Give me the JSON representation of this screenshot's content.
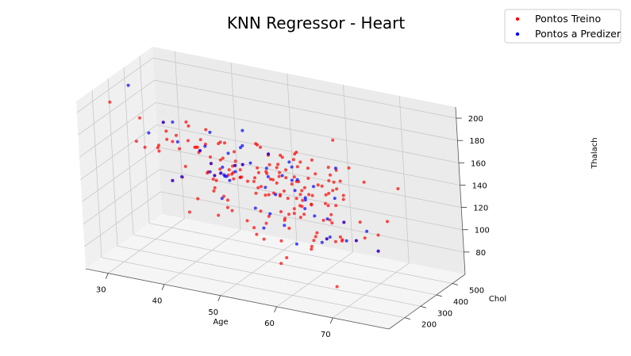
{
  "chart_data": {
    "type": "scatter",
    "projection": "3d",
    "title": "KNN Regressor - Heart",
    "xlabel": "Age",
    "ylabel": "Chol",
    "zlabel": "Thalach",
    "xlim": [
      26,
      80
    ],
    "ylim": [
      100,
      580
    ],
    "zlim": [
      60,
      210
    ],
    "xticks": [
      30,
      40,
      50,
      60,
      70
    ],
    "yticks": [
      200,
      300,
      400,
      500
    ],
    "zticks": [
      80,
      100,
      120,
      140,
      160,
      180,
      200
    ],
    "grid": true,
    "legend": {
      "position": "top-right"
    },
    "colors": {
      "train": "#ff0000",
      "predict": "#0000ff"
    },
    "series": [
      {
        "name": "Pontos Treino",
        "points": [
          [
            29,
            202,
            202
          ],
          [
            34,
            182,
            174
          ],
          [
            35,
            198,
            168
          ],
          [
            37,
            250,
            187
          ],
          [
            38,
            175,
            173
          ],
          [
            39,
            219,
            140
          ],
          [
            40,
            199,
            178
          ],
          [
            41,
            204,
            172
          ],
          [
            41,
            235,
            153
          ],
          [
            42,
            265,
            122
          ],
          [
            43,
            247,
            171
          ],
          [
            44,
            235,
            180
          ],
          [
            44,
            263,
            173
          ],
          [
            45,
            308,
            170
          ],
          [
            46,
            231,
            147
          ],
          [
            47,
            275,
            118
          ],
          [
            48,
            245,
            180
          ],
          [
            49,
            266,
            171
          ],
          [
            50,
            233,
            163
          ],
          [
            51,
            227,
            154
          ],
          [
            52,
            212,
            168
          ],
          [
            52,
            325,
            172
          ],
          [
            53,
            203,
            155
          ],
          [
            54,
            239,
            160
          ],
          [
            54,
            286,
            116
          ],
          [
            55,
            250,
            161
          ],
          [
            56,
            236,
            178
          ],
          [
            56,
            294,
            153
          ],
          [
            57,
            354,
            163
          ],
          [
            57,
            192,
            148
          ],
          [
            58,
            230,
            165
          ],
          [
            58,
            319,
            152
          ],
          [
            59,
            234,
            161
          ],
          [
            59,
            176,
            90
          ],
          [
            60,
            282,
            142
          ],
          [
            60,
            293,
            170
          ],
          [
            61,
            207,
            138
          ],
          [
            61,
            330,
            169
          ],
          [
            62,
            263,
            97
          ],
          [
            62,
            268,
            160
          ],
          [
            63,
            233,
            150
          ],
          [
            63,
            269,
            112
          ],
          [
            64,
            211,
            144
          ],
          [
            64,
            335,
            158
          ],
          [
            65,
            248,
            158
          ],
          [
            66,
            278,
            152
          ],
          [
            67,
            229,
            129
          ],
          [
            67,
            286,
            108
          ],
          [
            68,
            274,
            150
          ],
          [
            69,
            234,
            131
          ],
          [
            70,
            322,
            109
          ],
          [
            71,
            265,
            130
          ],
          [
            74,
            269,
            121
          ],
          [
            77,
            304,
            162
          ],
          [
            58,
            564,
            160
          ],
          [
            67,
            564,
            96
          ],
          [
            65,
            417,
            157
          ],
          [
            63,
            407,
            154
          ],
          [
            62,
            394,
            157
          ],
          [
            56,
            409,
            150
          ],
          [
            45,
            309,
            147
          ],
          [
            48,
            355,
            99
          ],
          [
            52,
            307,
            176
          ],
          [
            53,
            306,
            132
          ],
          [
            54,
            304,
            170
          ],
          [
            55,
            354,
            163
          ],
          [
            57,
            303,
            159
          ],
          [
            58,
            340,
            172
          ],
          [
            59,
            326,
            140
          ],
          [
            60,
            258,
            141
          ],
          [
            61,
            243,
            137
          ],
          [
            62,
            244,
            154
          ],
          [
            63,
            254,
            147
          ],
          [
            64,
            325,
            154
          ],
          [
            65,
            360,
            151
          ],
          [
            66,
            302,
            151
          ],
          [
            42,
            226,
            178
          ],
          [
            43,
            341,
            136
          ],
          [
            44,
            290,
            153
          ],
          [
            46,
            249,
            144
          ],
          [
            47,
            204,
            143
          ],
          [
            48,
            256,
            150
          ],
          [
            49,
            188,
            139
          ],
          [
            50,
            219,
            158
          ],
          [
            51,
            308,
            142
          ],
          [
            52,
            298,
            178
          ],
          [
            53,
            282,
            95
          ],
          [
            54,
            206,
            108
          ],
          [
            55,
            205,
            130
          ],
          [
            56,
            283,
            162
          ],
          [
            57,
            260,
            140
          ],
          [
            58,
            270,
            111
          ],
          [
            59,
            273,
            125
          ],
          [
            60,
            206,
            132
          ],
          [
            39,
            199,
            179
          ],
          [
            41,
            306,
            163
          ],
          [
            43,
            303,
            181
          ],
          [
            44,
            220,
            170
          ],
          [
            45,
            264,
            132
          ],
          [
            46,
            311,
            120
          ],
          [
            47,
            253,
            179
          ],
          [
            48,
            229,
            168
          ],
          [
            49,
            149,
            126
          ],
          [
            51,
            177,
            162
          ],
          [
            52,
            201,
            158
          ],
          [
            53,
            264,
            143
          ],
          [
            54,
            232,
            165
          ],
          [
            55,
            327,
            117
          ],
          [
            56,
            221,
            163
          ],
          [
            57,
            261,
            141
          ],
          [
            58,
            224,
            173
          ],
          [
            59,
            212,
            125
          ],
          [
            60,
            185,
            155
          ],
          [
            61,
            260,
            140
          ],
          [
            62,
            209,
            163
          ],
          [
            63,
            187,
            144
          ],
          [
            64,
            313,
            133
          ],
          [
            65,
            269,
            148
          ],
          [
            66,
            212,
            132
          ],
          [
            67,
            237,
            71
          ],
          [
            35,
            282,
            156
          ],
          [
            38,
            231,
            182
          ],
          [
            40,
            223,
            181
          ],
          [
            42,
            180,
            150
          ],
          [
            44,
            197,
            177
          ],
          [
            46,
            197,
            156
          ],
          [
            48,
            214,
            168
          ],
          [
            50,
            196,
            163
          ],
          [
            52,
            196,
            165
          ],
          [
            54,
            214,
            158
          ],
          [
            56,
            256,
            142
          ],
          [
            58,
            218,
            105
          ],
          [
            60,
            178,
            96
          ],
          [
            62,
            267,
            99
          ],
          [
            64,
            226,
            114
          ],
          [
            66,
            226,
            114
          ],
          [
            68,
            211,
            115
          ],
          [
            70,
            269,
            112
          ],
          [
            43,
            177,
            120
          ],
          [
            50,
            200,
            126
          ],
          [
            56,
            240,
            169
          ],
          [
            59,
            177,
            162
          ],
          [
            61,
            230,
            160
          ],
          [
            63,
            197,
            136
          ],
          [
            66,
            253,
            152
          ],
          [
            69,
            239,
            151
          ],
          [
            71,
            302,
            162
          ],
          [
            45,
            236,
            152
          ],
          [
            49,
            271,
            162
          ],
          [
            53,
            226,
            111
          ],
          [
            57,
            167,
            125
          ],
          [
            59,
            239,
            142
          ],
          [
            62,
            281,
            103
          ],
          [
            64,
            258,
            157
          ],
          [
            67,
            254,
            163
          ],
          [
            70,
            174,
            125
          ],
          [
            76,
            197,
            116
          ],
          [
            39,
            321,
            182
          ],
          [
            42,
            295,
            162
          ],
          [
            47,
            243,
            152
          ],
          [
            51,
            227,
            154
          ],
          [
            54,
            309,
            147
          ],
          [
            57,
            335,
            143
          ],
          [
            60,
            337,
            160
          ],
          [
            63,
            330,
            132
          ],
          [
            34,
            210,
            192
          ],
          [
            37,
            215,
            170
          ],
          [
            41,
            267,
            186
          ],
          [
            44,
            288,
            159
          ],
          [
            49,
            253,
            148
          ],
          [
            52,
            283,
            135
          ],
          [
            55,
            342,
            166
          ],
          [
            58,
            248,
            122
          ],
          [
            61,
            346,
            155
          ],
          [
            65,
            284,
            124
          ],
          [
            68,
            193,
            141
          ],
          [
            71,
            149,
            125
          ],
          [
            50,
            218,
            164
          ],
          [
            53,
            283,
            142
          ],
          [
            56,
            256,
            154
          ],
          [
            59,
            295,
            176
          ],
          [
            62,
            209,
            131
          ],
          [
            65,
            177,
            149
          ],
          [
            68,
            225,
            146
          ]
        ]
      },
      {
        "name": "Pontos a Predizer",
        "points": [
          [
            29,
            320,
            205
          ],
          [
            35,
            226,
            178
          ],
          [
            37,
            250,
            187
          ],
          [
            40,
            242,
            142
          ],
          [
            41,
            196,
            179
          ],
          [
            42,
            295,
            162
          ],
          [
            43,
            315,
            142
          ],
          [
            44,
            491,
            162
          ],
          [
            45,
            260,
            185
          ],
          [
            46,
            277,
            125
          ],
          [
            47,
            257,
            156
          ],
          [
            48,
            245,
            150
          ],
          [
            49,
            229,
            149
          ],
          [
            50,
            168,
            160
          ],
          [
            51,
            250,
            180
          ],
          [
            52,
            205,
            184
          ],
          [
            53,
            241,
            127
          ],
          [
            54,
            288,
            159
          ],
          [
            55,
            260,
            122
          ],
          [
            56,
            207,
            152
          ],
          [
            57,
            233,
            144
          ],
          [
            58,
            293,
            168
          ],
          [
            59,
            270,
            155
          ],
          [
            60,
            305,
            127
          ],
          [
            61,
            236,
            161
          ],
          [
            62,
            244,
            143
          ],
          [
            63,
            260,
            128
          ],
          [
            64,
            263,
            105
          ],
          [
            65,
            337,
            165
          ],
          [
            66,
            288,
            144
          ],
          [
            67,
            212,
            118
          ],
          [
            68,
            277,
            109
          ],
          [
            69,
            234,
            131
          ],
          [
            70,
            269,
            112
          ],
          [
            71,
            302,
            118
          ],
          [
            43,
            341,
            136
          ],
          [
            48,
            230,
            153
          ],
          [
            52,
            212,
            168
          ],
          [
            56,
            184,
            118
          ],
          [
            58,
            318,
            140
          ],
          [
            60,
            240,
            171
          ],
          [
            63,
            264,
            154
          ],
          [
            45,
            226,
            176
          ],
          [
            50,
            233,
            163
          ],
          [
            54,
            304,
            170
          ],
          [
            57,
            276,
            112
          ],
          [
            59,
            213,
            165
          ],
          [
            62,
            244,
            145
          ],
          [
            64,
            303,
            122
          ],
          [
            66,
            226,
            114
          ],
          [
            39,
            219,
            140
          ],
          [
            44,
            290,
            153
          ],
          [
            47,
            246,
            152
          ],
          [
            53,
            226,
            169
          ],
          [
            55,
            262,
            155
          ],
          [
            61,
            210,
            106
          ],
          [
            76,
            197,
            116
          ],
          [
            36,
            340,
            177
          ],
          [
            51,
            199,
            162
          ],
          [
            46,
            330,
            160
          ]
        ]
      }
    ]
  }
}
